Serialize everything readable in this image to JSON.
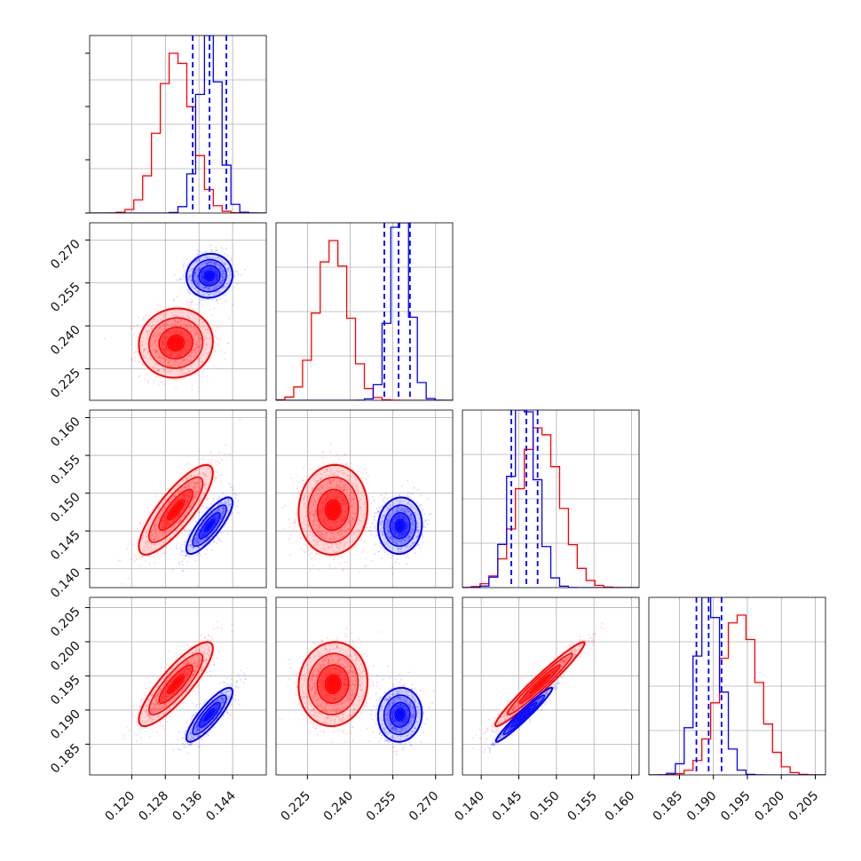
{
  "chart_data": {
    "type": "corner",
    "title": "",
    "parameters": [
      "",
      "",
      "",
      ""
    ],
    "ranges": [
      [
        0.11,
        0.152
      ],
      [
        0.214,
        0.276
      ],
      [
        0.1375,
        0.161
      ],
      [
        0.1805,
        0.2065
      ]
    ],
    "ticks": [
      [
        "0.120",
        "0.128",
        "0.136",
        "0.144"
      ],
      [
        "0.225",
        "0.240",
        "0.255",
        "0.270"
      ],
      [
        "0.140",
        "0.145",
        "0.150",
        "0.155",
        "0.160"
      ],
      [
        "0.185",
        "0.190",
        "0.195",
        "0.200",
        "0.205"
      ]
    ],
    "grid": true,
    "series": [
      {
        "color": "#ff0000",
        "mean": [
          0.1305,
          0.234,
          0.1478,
          0.1938
        ],
        "sd": [
          0.004,
          0.0055,
          0.0027,
          0.0028
        ],
        "corr": [
          [
            1,
            0.05,
            0.82,
            0.85
          ],
          [
            0.05,
            1,
            0.05,
            0.05
          ],
          [
            0.82,
            0.05,
            1,
            0.97
          ],
          [
            0.85,
            0.05,
            0.97,
            1
          ]
        ]
      },
      {
        "color": "#0000ff",
        "mean": [
          0.1385,
          0.2575,
          0.1457,
          0.1893
        ],
        "sd": [
          0.0025,
          0.0035,
          0.0017,
          0.0018
        ],
        "corr": [
          [
            1,
            0.05,
            0.82,
            0.85
          ],
          [
            0.05,
            1,
            0.05,
            0.05
          ],
          [
            0.82,
            0.05,
            1,
            0.97
          ],
          [
            0.85,
            0.05,
            0.97,
            1
          ]
        ],
        "quantiles": [
          [
            0.1345,
            0.1385,
            0.1425
          ],
          [
            0.252,
            0.257,
            0.261
          ],
          [
            0.144,
            0.146,
            0.1475
          ],
          [
            0.1875,
            0.1893,
            0.1912
          ]
        ]
      }
    ]
  }
}
